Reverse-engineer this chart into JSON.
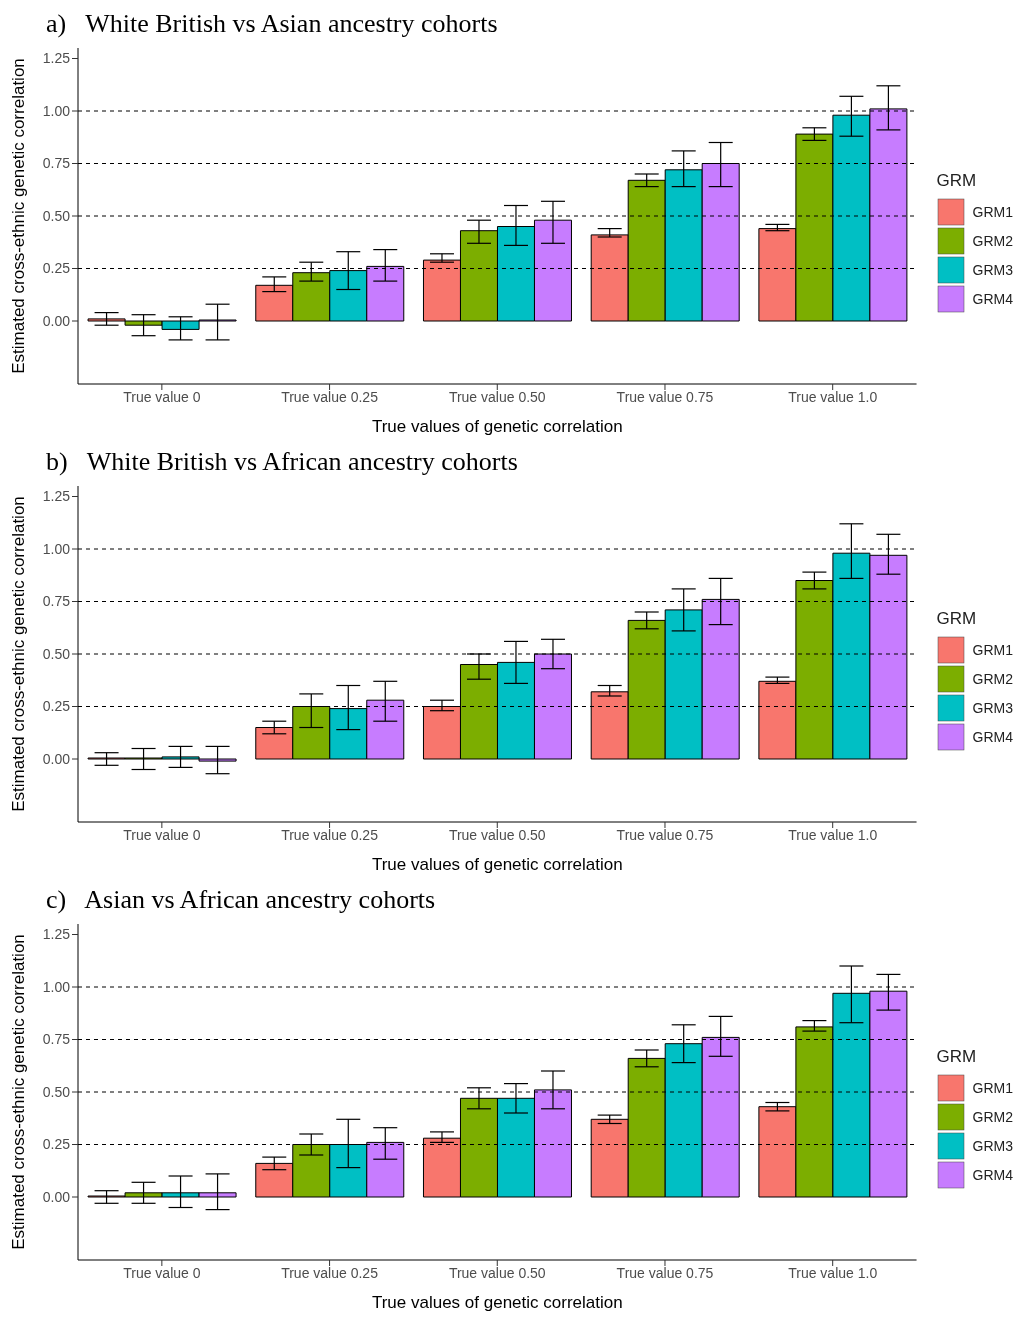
{
  "chart_data": [
    {
      "type": "bar",
      "title": "a)   White British vs Asian ancestry cohorts",
      "xlabel": "True values of genetic correlation",
      "ylabel": "Estimated cross-ethnic genetic correlation",
      "legend_title": "GRM",
      "legend": "right",
      "categories": [
        "True value 0",
        "True value 0.25",
        "True value 0.50",
        "True value 0.75",
        "True value 1.0"
      ],
      "ylim": [
        -0.3,
        1.3
      ],
      "yticks": [
        {
          "value": 0,
          "label": "0.00"
        },
        {
          "value": 0.25,
          "label": "0.25"
        },
        {
          "value": 0.5,
          "label": "0.50"
        },
        {
          "value": 0.75,
          "label": "0.75"
        },
        {
          "value": 1,
          "label": "1.00"
        },
        {
          "value": 1.25,
          "label": "1.25"
        }
      ],
      "ref_lines": [
        {
          "axis": "y",
          "value": 0.25,
          "line_style": "dashed"
        },
        {
          "axis": "y",
          "value": 0.5,
          "line_style": "dashed"
        },
        {
          "axis": "y",
          "value": 0.75,
          "line_style": "dashed"
        },
        {
          "axis": "y",
          "value": 1,
          "line_style": "dashed"
        }
      ],
      "series": [
        {
          "name": "GRM1",
          "color": "#f8766d",
          "values": [
            0.01,
            0.17,
            0.29,
            0.41,
            0.44
          ],
          "errors": [
            [
              -0.02,
              0.04
            ],
            [
              0.14,
              0.21
            ],
            [
              0.28,
              0.32
            ],
            [
              0.4,
              0.44
            ],
            [
              0.43,
              0.46
            ]
          ]
        },
        {
          "name": "GRM2",
          "color": "#7cae00",
          "values": [
            -0.02,
            0.23,
            0.43,
            0.67,
            0.89
          ],
          "errors": [
            [
              -0.07,
              0.03
            ],
            [
              0.19,
              0.28
            ],
            [
              0.37,
              0.48
            ],
            [
              0.64,
              0.7
            ],
            [
              0.86,
              0.92
            ]
          ]
        },
        {
          "name": "GRM3",
          "color": "#00bfc4",
          "values": [
            -0.04,
            0.24,
            0.45,
            0.72,
            0.98
          ],
          "errors": [
            [
              -0.09,
              0.02
            ],
            [
              0.15,
              0.33
            ],
            [
              0.36,
              0.55
            ],
            [
              0.64,
              0.81
            ],
            [
              0.88,
              1.07
            ]
          ]
        },
        {
          "name": "GRM4",
          "color": "#c77cff",
          "values": [
            0.0,
            0.26,
            0.48,
            0.75,
            1.01
          ],
          "errors": [
            [
              -0.09,
              0.08
            ],
            [
              0.19,
              0.34
            ],
            [
              0.37,
              0.57
            ],
            [
              0.64,
              0.85
            ],
            [
              0.91,
              1.12
            ]
          ]
        }
      ]
    },
    {
      "type": "bar",
      "title": "b)   White British vs African ancestry cohorts",
      "xlabel": "True values of genetic correlation",
      "ylabel": "Estimated cross-ethnic genetic correlation",
      "legend_title": "GRM",
      "legend": "right",
      "categories": [
        "True value 0",
        "True value 0.25",
        "True value 0.50",
        "True value 0.75",
        "True value 1.0"
      ],
      "ylim": [
        -0.3,
        1.3
      ],
      "yticks": [
        {
          "value": 0,
          "label": "0.00"
        },
        {
          "value": 0.25,
          "label": "0.25"
        },
        {
          "value": 0.5,
          "label": "0.50"
        },
        {
          "value": 0.75,
          "label": "0.75"
        },
        {
          "value": 1,
          "label": "1.00"
        },
        {
          "value": 1.25,
          "label": "1.25"
        }
      ],
      "ref_lines": [
        {
          "axis": "y",
          "value": 0.25,
          "line_style": "dashed"
        },
        {
          "axis": "y",
          "value": 0.5,
          "line_style": "dashed"
        },
        {
          "axis": "y",
          "value": 0.75,
          "line_style": "dashed"
        },
        {
          "axis": "y",
          "value": 1,
          "line_style": "dashed"
        }
      ],
      "series": [
        {
          "name": "GRM1",
          "color": "#f8766d",
          "values": [
            0.0,
            0.15,
            0.25,
            0.32,
            0.37
          ],
          "errors": [
            [
              -0.03,
              0.03
            ],
            [
              0.12,
              0.18
            ],
            [
              0.23,
              0.28
            ],
            [
              0.3,
              0.35
            ],
            [
              0.36,
              0.39
            ]
          ]
        },
        {
          "name": "GRM2",
          "color": "#7cae00",
          "values": [
            0.0,
            0.25,
            0.45,
            0.66,
            0.85
          ],
          "errors": [
            [
              -0.05,
              0.05
            ],
            [
              0.15,
              0.31
            ],
            [
              0.38,
              0.5
            ],
            [
              0.62,
              0.7
            ],
            [
              0.81,
              0.89
            ]
          ]
        },
        {
          "name": "GRM3",
          "color": "#00bfc4",
          "values": [
            0.01,
            0.24,
            0.46,
            0.71,
            0.98
          ],
          "errors": [
            [
              -0.04,
              0.06
            ],
            [
              0.14,
              0.35
            ],
            [
              0.36,
              0.56
            ],
            [
              0.61,
              0.81
            ],
            [
              0.86,
              1.12
            ]
          ]
        },
        {
          "name": "GRM4",
          "color": "#c77cff",
          "values": [
            -0.01,
            0.28,
            0.5,
            0.76,
            0.97
          ],
          "errors": [
            [
              -0.07,
              0.06
            ],
            [
              0.18,
              0.37
            ],
            [
              0.43,
              0.57
            ],
            [
              0.64,
              0.86
            ],
            [
              0.88,
              1.07
            ]
          ]
        }
      ]
    },
    {
      "type": "bar",
      "title": "c)   Asian vs African ancestry cohorts",
      "xlabel": "True values of genetic correlation",
      "ylabel": "Estimated cross-ethnic genetic correlation",
      "legend_title": "GRM",
      "legend": "right",
      "categories": [
        "True value 0",
        "True value 0.25",
        "True value 0.50",
        "True value 0.75",
        "True value 1.0"
      ],
      "ylim": [
        -0.3,
        1.3
      ],
      "yticks": [
        {
          "value": 0,
          "label": "0.00"
        },
        {
          "value": 0.25,
          "label": "0.25"
        },
        {
          "value": 0.5,
          "label": "0.50"
        },
        {
          "value": 0.75,
          "label": "0.75"
        },
        {
          "value": 1,
          "label": "1.00"
        },
        {
          "value": 1.25,
          "label": "1.25"
        }
      ],
      "ref_lines": [
        {
          "axis": "y",
          "value": 0.25,
          "line_style": "dashed"
        },
        {
          "axis": "y",
          "value": 0.5,
          "line_style": "dashed"
        },
        {
          "axis": "y",
          "value": 0.75,
          "line_style": "dashed"
        },
        {
          "axis": "y",
          "value": 1,
          "line_style": "dashed"
        }
      ],
      "series": [
        {
          "name": "GRM1",
          "color": "#f8766d",
          "values": [
            0.0,
            0.16,
            0.28,
            0.37,
            0.43
          ],
          "errors": [
            [
              -0.03,
              0.03
            ],
            [
              0.13,
              0.19
            ],
            [
              0.26,
              0.31
            ],
            [
              0.35,
              0.39
            ],
            [
              0.41,
              0.45
            ]
          ]
        },
        {
          "name": "GRM2",
          "color": "#7cae00",
          "values": [
            0.02,
            0.25,
            0.47,
            0.66,
            0.81
          ],
          "errors": [
            [
              -0.03,
              0.07
            ],
            [
              0.2,
              0.3
            ],
            [
              0.42,
              0.52
            ],
            [
              0.62,
              0.7
            ],
            [
              0.79,
              0.84
            ]
          ]
        },
        {
          "name": "GRM3",
          "color": "#00bfc4",
          "values": [
            0.02,
            0.25,
            0.47,
            0.73,
            0.97
          ],
          "errors": [
            [
              -0.05,
              0.1
            ],
            [
              0.14,
              0.37
            ],
            [
              0.4,
              0.54
            ],
            [
              0.64,
              0.82
            ],
            [
              0.83,
              1.1
            ]
          ]
        },
        {
          "name": "GRM4",
          "color": "#c77cff",
          "values": [
            0.02,
            0.26,
            0.51,
            0.76,
            0.98
          ],
          "errors": [
            [
              -0.06,
              0.11
            ],
            [
              0.18,
              0.33
            ],
            [
              0.42,
              0.6
            ],
            [
              0.67,
              0.86
            ],
            [
              0.89,
              1.06
            ]
          ]
        }
      ]
    }
  ]
}
